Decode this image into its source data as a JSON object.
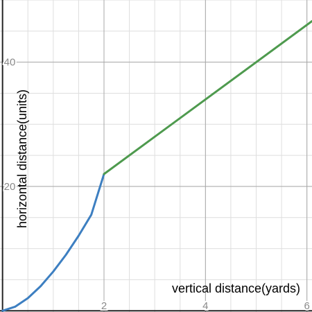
{
  "chart_data": {
    "type": "line",
    "xlabel": "vertical distance(yards)",
    "ylabel": "horizontal distance(units)",
    "xlim": [
      -0.05,
      6.1
    ],
    "ylim": [
      -0.2,
      50
    ],
    "x_ticks": [
      2,
      4,
      6
    ],
    "y_ticks": [
      20,
      40
    ],
    "minor_x_step": 0.5,
    "minor_y_step": 5,
    "grid": true,
    "series": [
      {
        "color": "#3d7fc1",
        "x": [
          0,
          0.25,
          0.5,
          0.75,
          1,
          1.25,
          1.5,
          1.75,
          2
        ],
        "y": [
          0,
          0.66,
          2.03,
          3.94,
          6.3,
          9.0,
          12.07,
          15.45,
          22
        ]
      },
      {
        "color": "#4e9a4e",
        "x": [
          2,
          6.1
        ],
        "y": [
          22,
          46.6
        ]
      }
    ]
  }
}
